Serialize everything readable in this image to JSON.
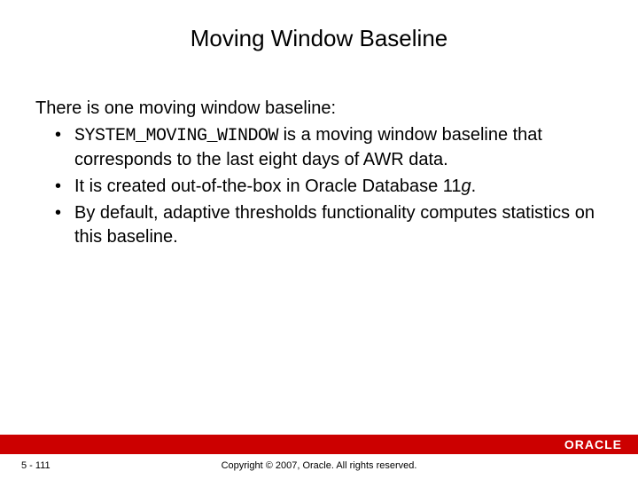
{
  "title": "Moving Window Baseline",
  "intro": "There is one moving window baseline:",
  "bullet1": {
    "code": "SYSTEM_MOVING_WINDOW",
    "rest": " is a moving window baseline that corresponds to the last eight days of AWR data."
  },
  "bullet2": {
    "prefix": "It is created out-of-the-box in Oracle Database 11",
    "italic": "g",
    "suffix": "."
  },
  "bullet3": "By default, adaptive thresholds functionality computes statistics on this baseline.",
  "footer": {
    "page": "5 - 111",
    "copyright": "Copyright © 2007, Oracle. All rights reserved.",
    "logo": "ORACLE",
    "bar_color": "#cc0000"
  }
}
